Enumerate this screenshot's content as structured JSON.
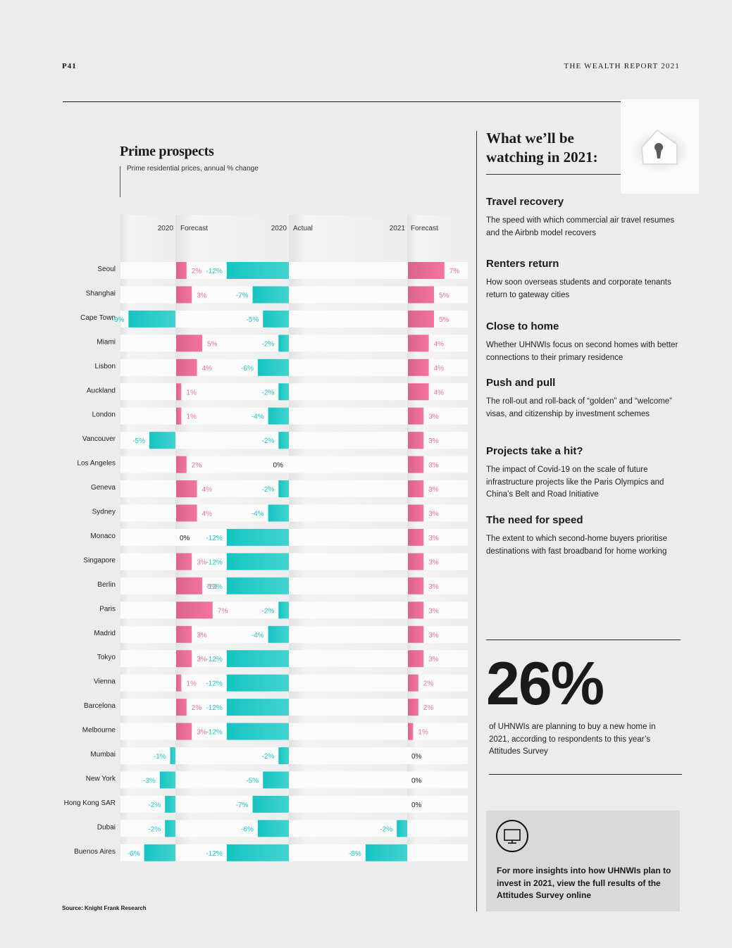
{
  "page_number": "P41",
  "report_title": "THE WEALTH REPORT 2021",
  "source": "Source: Knight Frank Research",
  "chart_data": {
    "type": "bar",
    "title": "Prime prospects",
    "subtitle": "Prime residential prices, annual % change",
    "columns": [
      {
        "year": "2020",
        "label": "Forecast"
      },
      {
        "year": "2020",
        "label": "Actual"
      },
      {
        "year": "2021",
        "label": "Forecast"
      }
    ],
    "categories": [
      "Seoul",
      "Shanghai",
      "Cape Town",
      "Miami",
      "Lisbon",
      "Auckland",
      "London",
      "Vancouver",
      "Los Angeles",
      "Geneva",
      "Sydney",
      "Monaco",
      "Singapore",
      "Berlin",
      "Paris",
      "Madrid",
      "Tokyo",
      "Vienna",
      "Barcelona",
      "Melbourne",
      "Mumbai",
      "New York",
      "Hong Kong SAR",
      "Dubai",
      "Buenos Aires"
    ],
    "series": [
      {
        "name": "2020 Forecast",
        "values": [
          2,
          3,
          -9,
          5,
          4,
          1,
          1,
          -5,
          2,
          4,
          4,
          0,
          3,
          5,
          7,
          3,
          3,
          1,
          2,
          3,
          -1,
          -3,
          -2,
          -2,
          -6
        ]
      },
      {
        "name": "2020 Actual",
        "values": [
          -12,
          -7,
          -5,
          -2,
          -6,
          -2,
          -4,
          -2,
          0,
          -2,
          -4,
          -12,
          -12,
          -12,
          -2,
          -4,
          -12,
          -12,
          -12,
          -12,
          -2,
          -5,
          -7,
          -6,
          -12
        ]
      },
      {
        "name": "2021 Forecast",
        "values": [
          7,
          5,
          5,
          4,
          4,
          4,
          3,
          3,
          3,
          3,
          3,
          3,
          3,
          3,
          3,
          3,
          3,
          2,
          2,
          1,
          0,
          0,
          0,
          -2,
          -8
        ]
      }
    ],
    "colors": {
      "positive": "#ef6f9c",
      "negative": "#1ec8c5"
    }
  },
  "watch": {
    "title_line1": "What we’ll be",
    "title_line2": "watching in 2021:",
    "items": [
      {
        "heading": "Travel recovery",
        "text": "The speed with which commercial air travel resumes and the Airbnb model recovers"
      },
      {
        "heading": "Renters return",
        "text": "How soon overseas students and corporate tenants return to gateway cities"
      },
      {
        "heading": "Close to home",
        "text": "Whether UHNWIs focus on second homes with better connections to their primary residence"
      },
      {
        "heading": "Push and pull",
        "text": "The roll-out and roll-back of “golden” and “welcome” visas, and citizenship by investment schemes"
      },
      {
        "heading": "Projects take a hit?",
        "text": "The impact of Covid-19 on the scale of future infrastructure projects like the Paris Olympics and China’s Belt and Road Initiative"
      },
      {
        "heading": "The need for speed",
        "text": "The extent to which second-home buyers prioritise destinations with fast broadband for home working"
      }
    ]
  },
  "stat": {
    "value": "26%",
    "text": "of UHNWIs are planning to buy a new home in 2021, according to respondents to this year’s Attitudes Survey"
  },
  "cta": {
    "icon": "monitor-icon",
    "text": "For more insights into how UHNWIs plan to invest in 2021, view the full results of the Attitudes Survey online"
  }
}
